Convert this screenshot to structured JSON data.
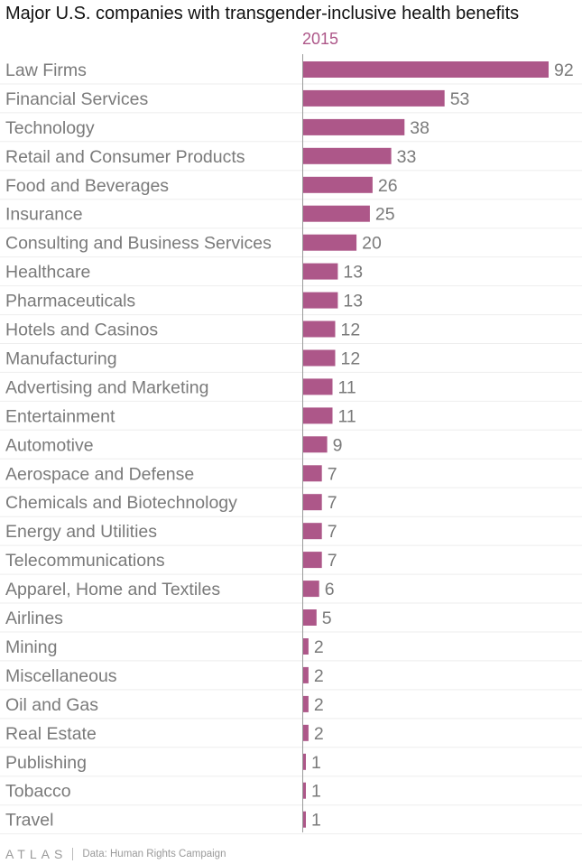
{
  "chart_data": {
    "type": "bar",
    "orientation": "horizontal",
    "title": "Major U.S. companies with transgender-inclusive health benefits",
    "series": [
      {
        "name": "2015",
        "color": "#ad5789",
        "values": [
          92,
          53,
          38,
          33,
          26,
          25,
          20,
          13,
          13,
          12,
          12,
          11,
          11,
          9,
          7,
          7,
          7,
          7,
          6,
          5,
          2,
          2,
          2,
          2,
          1,
          1,
          1
        ]
      }
    ],
    "categories": [
      "Law Firms",
      "Financial Services",
      "Technology",
      "Retail and Consumer Products",
      "Food and Beverages",
      "Insurance",
      "Consulting and Business Services",
      "Healthcare",
      "Pharmaceuticals",
      "Hotels and Casinos",
      "Manufacturing",
      "Advertising and Marketing",
      "Entertainment",
      "Automotive",
      "Aerospace and Defense",
      "Chemicals and Biotechnology",
      "Energy and Utilities",
      "Telecommunications",
      "Apparel, Home and Textiles",
      "Airlines",
      "Mining",
      "Miscellaneous",
      "Oil and Gas",
      "Real Estate",
      "Publishing",
      "Tobacco",
      "Travel"
    ],
    "xlim": [
      0,
      92
    ],
    "grid": false
  },
  "footer": {
    "logo": "ATLAS",
    "source": "Data: Human Rights Campaign"
  }
}
